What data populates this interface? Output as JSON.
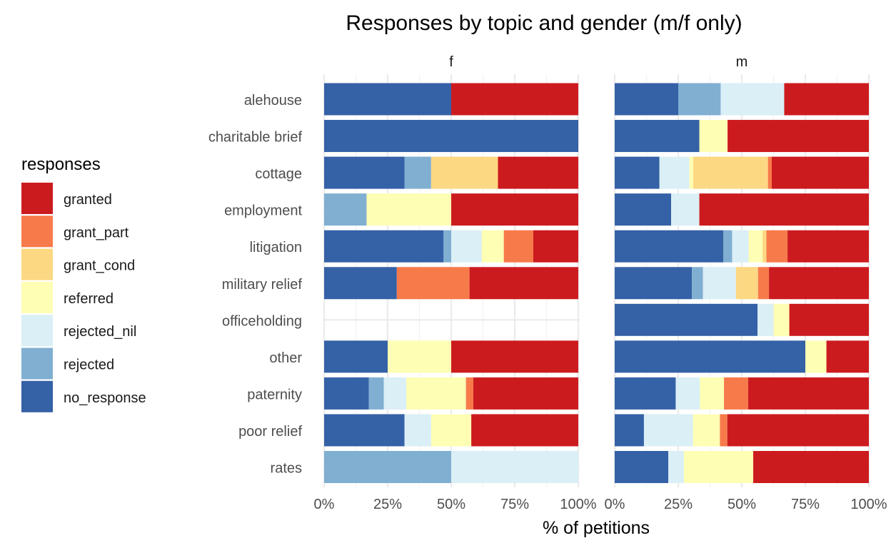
{
  "chart_data": {
    "type": "bar",
    "orientation": "horizontal",
    "stacked": "percent",
    "title": "Responses by topic and gender (m/f only)",
    "xlabel": "% of petitions",
    "ylabel": "",
    "xlim": [
      0,
      100
    ],
    "x_ticks": [
      "0%",
      "25%",
      "50%",
      "75%",
      "100%"
    ],
    "grid": true,
    "legend": {
      "title": "responses",
      "position": "left",
      "entries": [
        "granted",
        "grant_part",
        "grant_cond",
        "referred",
        "rejected_nil",
        "rejected",
        "no_response"
      ]
    },
    "colors": {
      "granted": "#CC1B1F",
      "grant_part": "#F77A4A",
      "grant_cond": "#FCD882",
      "referred": "#FEFEB4",
      "rejected_nil": "#DAEFF6",
      "rejected": "#80AFD2",
      "no_response": "#3561A6"
    },
    "stack_order": [
      "no_response",
      "rejected",
      "rejected_nil",
      "referred",
      "grant_cond",
      "grant_part",
      "granted"
    ],
    "categories": [
      "alehouse",
      "charitable brief",
      "cottage",
      "employment",
      "litigation",
      "military relief",
      "officeholding",
      "other",
      "paternity",
      "poor relief",
      "rates"
    ],
    "facets": [
      {
        "name": "f",
        "values": {
          "alehouse": {
            "no_response": 50,
            "granted": 50
          },
          "charitable brief": {
            "no_response": 100
          },
          "cottage": {
            "no_response": 31.6,
            "rejected": 10.5,
            "grant_cond": 26.3,
            "granted": 31.6
          },
          "employment": {
            "rejected": 16.7,
            "referred": 33.3,
            "granted": 50
          },
          "litigation": {
            "no_response": 47,
            "rejected": 3,
            "rejected_nil": 12,
            "referred": 8.7,
            "grant_part": 11.6,
            "granted": 17.7
          },
          "military relief": {
            "no_response": 28.6,
            "grant_part": 28.6,
            "granted": 42.8
          },
          "officeholding": {},
          "other": {
            "no_response": 25,
            "referred": 25,
            "granted": 50
          },
          "paternity": {
            "no_response": 17.6,
            "rejected": 5.9,
            "rejected_nil": 8.8,
            "referred": 23.5,
            "grant_part": 2.9,
            "granted": 41.3
          },
          "poor relief": {
            "no_response": 31.6,
            "rejected_nil": 10.5,
            "referred": 15.8,
            "granted": 42.1
          },
          "rates": {
            "rejected": 50,
            "rejected_nil": 50
          }
        }
      },
      {
        "name": "m",
        "values": {
          "alehouse": {
            "no_response": 25,
            "rejected": 16.7,
            "rejected_nil": 25,
            "granted": 33.3
          },
          "charitable brief": {
            "no_response": 33.3,
            "referred": 11.1,
            "granted": 55.6
          },
          "cottage": {
            "no_response": 17.6,
            "rejected_nil": 11.8,
            "referred": 1.5,
            "grant_cond": 29.4,
            "grant_part": 1.5,
            "granted": 38.2
          },
          "employment": {
            "no_response": 22.2,
            "rejected_nil": 11.1,
            "granted": 66.7
          },
          "litigation": {
            "no_response": 42.7,
            "rejected": 3.5,
            "rejected_nil": 6.5,
            "referred": 5.5,
            "grant_cond": 1.5,
            "grant_part": 8.3,
            "granted": 32
          },
          "military relief": {
            "no_response": 30.4,
            "rejected": 4.3,
            "rejected_nil": 13,
            "referred": 0,
            "grant_cond": 8.7,
            "grant_part": 4.3,
            "granted": 39.3
          },
          "officeholding": {
            "no_response": 56.2,
            "rejected_nil": 6.3,
            "referred": 6.2,
            "granted": 31.3
          },
          "other": {
            "no_response": 75,
            "referred": 8.3,
            "granted": 16.7
          },
          "paternity": {
            "no_response": 24,
            "rejected_nil": 9.5,
            "referred": 9.5,
            "grant_part": 9.5,
            "granted": 47.5
          },
          "poor relief": {
            "no_response": 11.5,
            "rejected_nil": 19.3,
            "referred": 10.6,
            "grant_part": 2.9,
            "granted": 55.7
          },
          "rates": {
            "no_response": 21.1,
            "rejected_nil": 6.1,
            "referred": 27.3,
            "granted": 45.5
          }
        }
      }
    ]
  }
}
